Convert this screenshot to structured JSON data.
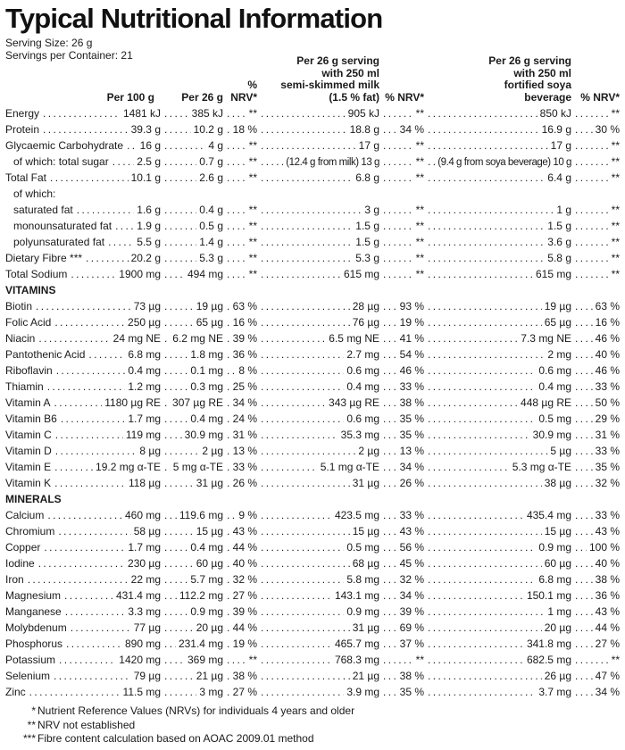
{
  "title": "Typical Nutritional Information",
  "serving": {
    "size": "Serving Size: 26 g",
    "container": "Servings per Container: 21"
  },
  "columns": {
    "per_100g": "Per 100 g",
    "per_26g": "Per 26 g",
    "nrv_1": "% NRV*",
    "milk_lines": [
      "Per 26 g serving",
      "with 250 ml",
      "semi-skimmed milk",
      "(1.5 % fat)"
    ],
    "nrv_2": "% NRV*",
    "soya_lines": [
      "Per 26 g serving",
      "with 250 ml",
      "fortified soya",
      "beverage"
    ],
    "nrv_3": "% NRV*"
  },
  "column_keys": [
    "per-100g",
    "per-26g",
    "nrv-per-26g",
    "milk-serving",
    "nrv-milk",
    "soya-serving",
    "nrv-soya"
  ],
  "rows": [
    {
      "label": "Energy",
      "values": [
        "1481 kJ",
        "385 kJ",
        "**",
        "905 kJ",
        "**",
        "850 kJ",
        "**"
      ]
    },
    {
      "label": "Protein",
      "values": [
        "39.3 g",
        "10.2 g",
        "18 %",
        "18.8 g",
        "34 %",
        "16.9 g",
        "30 %"
      ]
    },
    {
      "label": "Glycaemic Carbohydrate",
      "values": [
        "16 g",
        "4 g",
        "**",
        "17 g",
        "**",
        "17 g",
        "**"
      ]
    },
    {
      "label": "of which: total sugar",
      "indent": true,
      "values": [
        "2.5 g",
        "0.7 g",
        "**",
        "(12.4 g from milk) 13 g",
        "**",
        "(9.4 g from soya beverage) 10 g",
        "**"
      ]
    },
    {
      "label": "Total Fat",
      "values": [
        "10.1 g",
        "2.6 g",
        "**",
        "6.8 g",
        "**",
        "6.4 g",
        "**"
      ]
    },
    {
      "label": "of which:",
      "indent": true,
      "values": []
    },
    {
      "label": "saturated fat",
      "indent": true,
      "values": [
        "1.6 g",
        "0.4 g",
        "**",
        "3 g",
        "**",
        "1 g",
        "**"
      ]
    },
    {
      "label": "monounsaturated fat",
      "indent": true,
      "values": [
        "1.9 g",
        "0.5 g",
        "**",
        "1.5 g",
        "**",
        "1.5 g",
        "**"
      ]
    },
    {
      "label": "polyunsaturated fat",
      "indent": true,
      "values": [
        "5.5 g",
        "1.4 g",
        "**",
        "1.5 g",
        "**",
        "3.6 g",
        "**"
      ]
    },
    {
      "label": "Dietary Fibre ***",
      "values": [
        "20.2 g",
        "5.3 g",
        "**",
        "5.3 g",
        "**",
        "5.8 g",
        "**"
      ]
    },
    {
      "label": "Total Sodium",
      "values": [
        "1900 mg",
        "494 mg",
        "**",
        "615 mg",
        "**",
        "615 mg",
        "**"
      ]
    },
    {
      "section": "VITAMINS"
    },
    {
      "label": "Biotin",
      "values": [
        "73 µg",
        "19 µg",
        "63 %",
        "28 µg",
        "93 %",
        "19 µg",
        "63 %"
      ]
    },
    {
      "label": "Folic Acid",
      "values": [
        "250 µg",
        "65 µg",
        "16 %",
        "76 µg",
        "19 %",
        "65 µg",
        "16 %"
      ]
    },
    {
      "label": "Niacin",
      "values": [
        "24 mg NE",
        "6.2 mg NE",
        "39 %",
        "6.5 mg NE",
        "41 %",
        "7.3 mg NE",
        "46 %"
      ]
    },
    {
      "label": "Pantothenic Acid",
      "values": [
        "6.8 mg",
        "1.8 mg",
        "36 %",
        "2.7 mg",
        "54 %",
        "2 mg",
        "40 %"
      ]
    },
    {
      "label": "Riboflavin",
      "values": [
        "0.4 mg",
        "0.1 mg",
        "8 %",
        "0.6 mg",
        "46 %",
        "0.6 mg",
        "46 %"
      ]
    },
    {
      "label": "Thiamin",
      "values": [
        "1.2 mg",
        "0.3 mg",
        "25 %",
        "0.4 mg",
        "33 %",
        "0.4 mg",
        "33 %"
      ]
    },
    {
      "label": "Vitamin A",
      "values": [
        "1180 µg RE",
        "307 µg RE",
        "34 %",
        "343 µg RE",
        "38 %",
        "448 µg RE",
        "50 %"
      ]
    },
    {
      "label": "Vitamin B6",
      "values": [
        "1.7 mg",
        "0.4 mg",
        "24 %",
        "0.6 mg",
        "35 %",
        "0.5 mg",
        "29 %"
      ]
    },
    {
      "label": "Vitamin C",
      "values": [
        "119 mg",
        "30.9 mg",
        "31 %",
        "35.3 mg",
        "35 %",
        "30.9 mg",
        "31 %"
      ]
    },
    {
      "label": "Vitamin D",
      "values": [
        "8 µg",
        "2 µg",
        "13 %",
        "2 µg",
        "13 %",
        "5 µg",
        "33 %"
      ]
    },
    {
      "label": "Vitamin E",
      "values": [
        "19.2 mg α-TE",
        "5 mg α-TE",
        "33 %",
        "5.1 mg α-TE",
        "34 %",
        "5.3 mg α-TE",
        "35 %"
      ]
    },
    {
      "label": "Vitamin K",
      "values": [
        "118 µg",
        "31 µg",
        "26 %",
        "31 µg",
        "26 %",
        "38 µg",
        "32 %"
      ]
    },
    {
      "section": "MINERALS"
    },
    {
      "label": "Calcium",
      "values": [
        "460 mg",
        "119.6 mg",
        "9 %",
        "423.5 mg",
        "33 %",
        "435.4 mg",
        "33 %"
      ]
    },
    {
      "label": "Chromium",
      "values": [
        "58 µg",
        "15 µg",
        "43 %",
        "15 µg",
        "43 %",
        "15 µg",
        "43 %"
      ]
    },
    {
      "label": "Copper",
      "values": [
        "1.7 mg",
        "0.4 mg",
        "44 %",
        "0.5 mg",
        "56 %",
        "0.9 mg",
        "100 %"
      ]
    },
    {
      "label": "Iodine",
      "values": [
        "230 µg",
        "60 µg",
        "40 %",
        "68 µg",
        "45 %",
        "60 µg",
        "40 %"
      ]
    },
    {
      "label": "Iron",
      "values": [
        "22 mg",
        "5.7 mg",
        "32 %",
        "5.8 mg",
        "32 %",
        "6.8 mg",
        "38 %"
      ]
    },
    {
      "label": "Magnesium",
      "values": [
        "431.4 mg",
        "112.2 mg",
        "27 %",
        "143.1 mg",
        "34 %",
        "150.1 mg",
        "36 %"
      ]
    },
    {
      "label": "Manganese",
      "values": [
        "3.3 mg",
        "0.9 mg",
        "39 %",
        "0.9 mg",
        "39 %",
        "1 mg",
        "43 %"
      ]
    },
    {
      "label": "Molybdenum",
      "values": [
        "77 µg",
        "20 µg",
        "44 %",
        "31 µg",
        "69 %",
        "20 µg",
        "44 %"
      ]
    },
    {
      "label": "Phosphorus",
      "values": [
        "890 mg",
        "231.4 mg",
        "19 %",
        "465.7 mg",
        "37 %",
        "341.8 mg",
        "27 %"
      ]
    },
    {
      "label": "Potassium",
      "values": [
        "1420 mg",
        "369 mg",
        "**",
        "768.3 mg",
        "**",
        "682.5 mg",
        "**"
      ]
    },
    {
      "label": "Selenium",
      "values": [
        "79 µg",
        "21 µg",
        "38 %",
        "21 µg",
        "38 %",
        "26 µg",
        "47 %"
      ]
    },
    {
      "label": "Zinc",
      "values": [
        "11.5 mg",
        "3 mg",
        "27 %",
        "3.9 mg",
        "35 %",
        "3.7 mg",
        "34 %"
      ]
    }
  ],
  "footnotes": [
    {
      "marker": "*",
      "text": "Nutrient Reference Values (NRVs) for individuals 4 years and older"
    },
    {
      "marker": "**",
      "text": "NRV not established"
    },
    {
      "marker": "***",
      "text": "Fibre content calculation based on AOAC 2009.01 method"
    }
  ],
  "colors": {
    "text": "#1a1a1a",
    "background": "#ffffff"
  }
}
